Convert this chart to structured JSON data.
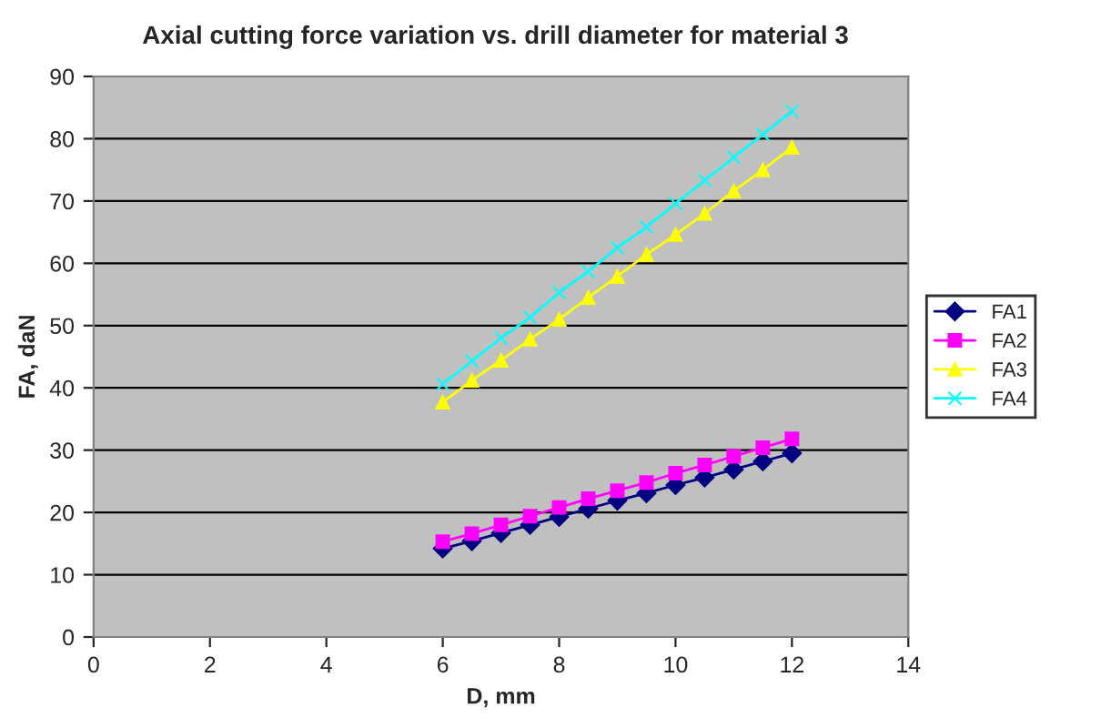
{
  "chart_data": {
    "type": "line",
    "title": "Axial cutting force variation vs. drill diameter for material 3",
    "xlabel": "D, mm",
    "ylabel": "FA, daN",
    "x": [
      6,
      6.5,
      7,
      7.5,
      8,
      8.5,
      9,
      9.5,
      10,
      10.5,
      11,
      11.5,
      12
    ],
    "series": [
      {
        "name": "FA1",
        "color": "#000080",
        "marker": "diamond",
        "values": [
          14.2,
          15.4,
          16.7,
          18.0,
          19.3,
          20.6,
          21.9,
          23.1,
          24.4,
          25.6,
          26.9,
          28.2,
          29.5
        ]
      },
      {
        "name": "FA2",
        "color": "#ff00ff",
        "marker": "square",
        "values": [
          15.3,
          16.6,
          18.0,
          19.4,
          20.8,
          22.2,
          23.5,
          24.8,
          26.3,
          27.6,
          29.0,
          30.4,
          31.8
        ]
      },
      {
        "name": "FA3",
        "color": "#ffff00",
        "marker": "triangle",
        "values": [
          37.7,
          41.2,
          44.4,
          47.8,
          51.0,
          54.5,
          57.9,
          61.4,
          64.6,
          68.0,
          71.6,
          75.0,
          78.6
        ]
      },
      {
        "name": "FA4",
        "color": "#00ffff",
        "marker": "cross",
        "values": [
          40.6,
          44.3,
          48.0,
          51.3,
          55.3,
          58.7,
          62.5,
          65.8,
          69.6,
          73.3,
          77.0,
          80.7,
          84.4
        ]
      }
    ],
    "xlim": [
      0,
      14
    ],
    "xticks": [
      0,
      2,
      4,
      6,
      8,
      10,
      12,
      14
    ],
    "ylim": [
      0,
      90
    ],
    "yticks": [
      0,
      10,
      20,
      30,
      40,
      50,
      60,
      70,
      80,
      90
    ],
    "grid": "y",
    "legend": "right"
  }
}
